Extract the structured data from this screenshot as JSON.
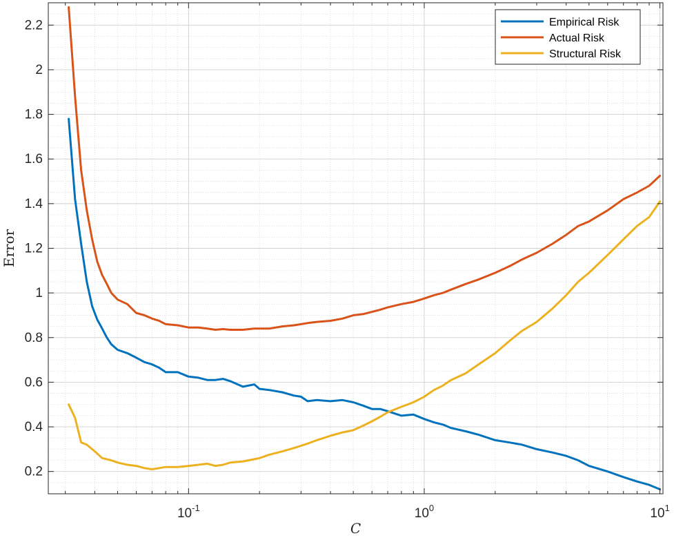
{
  "chart_data": {
    "type": "line",
    "title": "",
    "xlabel": "C",
    "ylabel": "Error",
    "xscale": "log",
    "xlim": [
      0.0254,
      10.3
    ],
    "ylim": [
      0.1,
      2.3
    ],
    "grid": true,
    "minor_grid": true,
    "legend_position": "top-right",
    "x_ticks": [
      {
        "value": 0.1,
        "base": "10",
        "exp": "-1"
      },
      {
        "value": 1,
        "base": "10",
        "exp": "0"
      },
      {
        "value": 10,
        "base": "10",
        "exp": "1"
      }
    ],
    "y_ticks": [
      {
        "value": 0.2,
        "label": "0.2"
      },
      {
        "value": 0.4,
        "label": "0.4"
      },
      {
        "value": 0.6,
        "label": "0.6"
      },
      {
        "value": 0.8,
        "label": "0.8"
      },
      {
        "value": 1.0,
        "label": "1"
      },
      {
        "value": 1.2,
        "label": "1.2"
      },
      {
        "value": 1.4,
        "label": "1.4"
      },
      {
        "value": 1.6,
        "label": "1.6"
      },
      {
        "value": 1.8,
        "label": "1.8"
      },
      {
        "value": 2.0,
        "label": "2"
      },
      {
        "value": 2.2,
        "label": "2.2"
      }
    ],
    "x": [
      0.031,
      0.033,
      0.035,
      0.037,
      0.039,
      0.041,
      0.043,
      0.045,
      0.047,
      0.05,
      0.055,
      0.06,
      0.065,
      0.07,
      0.075,
      0.08,
      0.09,
      0.1,
      0.11,
      0.12,
      0.13,
      0.14,
      0.15,
      0.17,
      0.19,
      0.2,
      0.22,
      0.25,
      0.28,
      0.3,
      0.32,
      0.35,
      0.4,
      0.45,
      0.5,
      0.55,
      0.6,
      0.65,
      0.7,
      0.8,
      0.9,
      1.0,
      1.1,
      1.2,
      1.3,
      1.5,
      1.7,
      2.0,
      2.3,
      2.6,
      3.0,
      3.5,
      4.0,
      4.5,
      5.0,
      6.0,
      7.0,
      8.0,
      9.0,
      10.0
    ],
    "series": [
      {
        "name": "Empirical Risk",
        "color": "#0072BD",
        "values": [
          1.78,
          1.42,
          1.22,
          1.05,
          0.94,
          0.88,
          0.84,
          0.8,
          0.77,
          0.745,
          0.73,
          0.71,
          0.69,
          0.68,
          0.665,
          0.645,
          0.645,
          0.625,
          0.62,
          0.61,
          0.61,
          0.615,
          0.605,
          0.58,
          0.59,
          0.57,
          0.565,
          0.555,
          0.54,
          0.535,
          0.515,
          0.52,
          0.515,
          0.52,
          0.51,
          0.495,
          0.48,
          0.48,
          0.47,
          0.45,
          0.455,
          0.435,
          0.42,
          0.41,
          0.395,
          0.38,
          0.365,
          0.34,
          0.33,
          0.32,
          0.3,
          0.285,
          0.27,
          0.25,
          0.225,
          0.2,
          0.175,
          0.155,
          0.14,
          0.12
        ]
      },
      {
        "name": "Actual Risk",
        "color": "#D95319",
        "values": [
          2.28,
          1.88,
          1.55,
          1.37,
          1.24,
          1.14,
          1.08,
          1.04,
          1.0,
          0.97,
          0.95,
          0.91,
          0.9,
          0.885,
          0.875,
          0.86,
          0.855,
          0.845,
          0.845,
          0.84,
          0.835,
          0.838,
          0.835,
          0.835,
          0.84,
          0.84,
          0.84,
          0.85,
          0.855,
          0.86,
          0.865,
          0.87,
          0.875,
          0.885,
          0.9,
          0.905,
          0.915,
          0.925,
          0.935,
          0.95,
          0.96,
          0.975,
          0.99,
          1.0,
          1.015,
          1.04,
          1.06,
          1.09,
          1.12,
          1.15,
          1.18,
          1.22,
          1.26,
          1.3,
          1.32,
          1.37,
          1.42,
          1.45,
          1.48,
          1.525
        ]
      },
      {
        "name": "Structural Risk",
        "color": "#EDB120",
        "values": [
          0.5,
          0.44,
          0.33,
          0.32,
          0.3,
          0.28,
          0.26,
          0.255,
          0.25,
          0.24,
          0.23,
          0.225,
          0.215,
          0.21,
          0.215,
          0.22,
          0.22,
          0.225,
          0.23,
          0.235,
          0.225,
          0.23,
          0.24,
          0.245,
          0.255,
          0.26,
          0.275,
          0.29,
          0.305,
          0.315,
          0.325,
          0.34,
          0.36,
          0.375,
          0.385,
          0.405,
          0.425,
          0.445,
          0.465,
          0.49,
          0.51,
          0.535,
          0.565,
          0.585,
          0.61,
          0.64,
          0.68,
          0.73,
          0.785,
          0.83,
          0.87,
          0.93,
          0.99,
          1.05,
          1.09,
          1.17,
          1.24,
          1.3,
          1.34,
          1.41
        ]
      }
    ]
  }
}
